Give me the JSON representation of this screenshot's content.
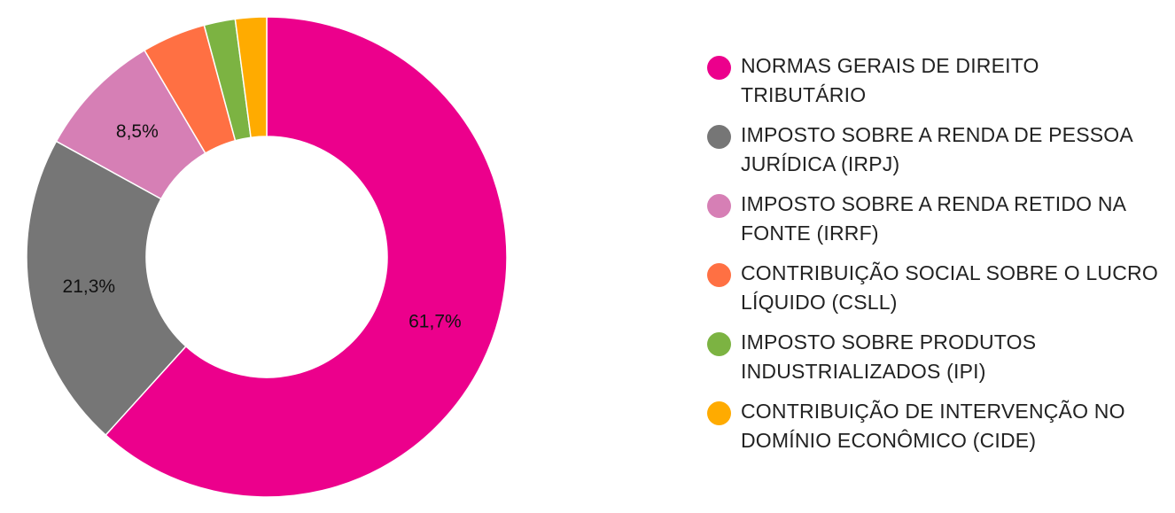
{
  "chart_data": {
    "type": "pie",
    "donut": true,
    "legend_position": "right",
    "series": [
      {
        "name": "NORMAS GERAIS DE DIREITO TRIBUTÁRIO",
        "value": 61.7,
        "label": "61,7%",
        "color": "#EC008C"
      },
      {
        "name": "IMPOSTO SOBRE A RENDA DE PESSOA JURÍDICA (IRPJ)",
        "value": 21.3,
        "label": "21,3%",
        "color": "#767676"
      },
      {
        "name": "IMPOSTO SOBRE A RENDA RETIDO NA FONTE (IRRF)",
        "value": 8.5,
        "label": "8,5%",
        "color": "#D67FB5"
      },
      {
        "name": "CONTRIBUIÇÃO SOCIAL SOBRE O LUCRO LÍQUIDO (CSLL)",
        "value": 4.3,
        "label": "",
        "color": "#FF7043"
      },
      {
        "name": "IMPOSTO SOBRE PRODUTOS INDUSTRIALIZADOS (IPI)",
        "value": 2.1,
        "label": "",
        "color": "#7CB342"
      },
      {
        "name": "CONTRIBUIÇÃO DE INTERVENÇÃO NO DOMÍNIO ECONÔMICO (CIDE)",
        "value": 2.1,
        "label": "",
        "color": "#FFAB00"
      }
    ]
  }
}
